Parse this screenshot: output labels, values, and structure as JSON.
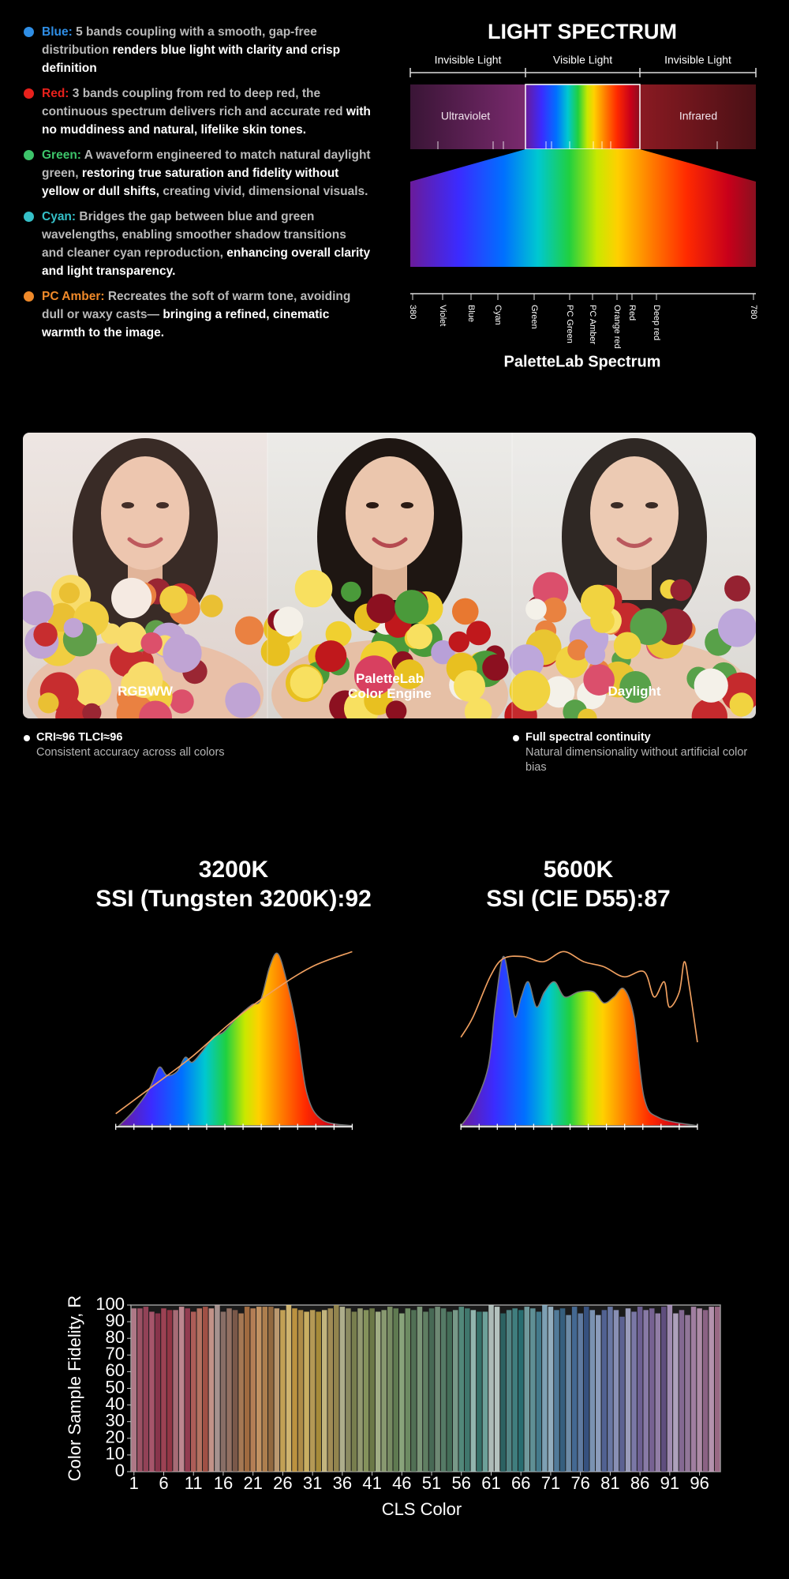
{
  "features": [
    {
      "label": "Blue:",
      "color": "#2f8ee5",
      "parts": [
        {
          "text": "5 bands coupling with a smooth, gap-free distribution",
          "tone": "dim"
        },
        {
          "text": "renders blue light with clarity and crisp definition",
          "tone": "bright"
        }
      ]
    },
    {
      "label": "Red:",
      "color": "#e8211c",
      "parts": [
        {
          "text": "3 bands coupling from red to deep red, the continuous spectrum delivers rich and accurate red",
          "tone": "dim"
        },
        {
          "text": "with no muddiness and natural, lifelike skin tones.",
          "tone": "bright"
        }
      ]
    },
    {
      "label": "Green:",
      "color": "#3dc46a",
      "parts": [
        {
          "text": "A waveform engineered to match natural daylight green,",
          "tone": "dim"
        },
        {
          "text": "restoring true saturation and fidelity without yellow or dull shifts,",
          "tone": "bright"
        },
        {
          "text": "creating vivid, dimensional visuals.",
          "tone": "dim"
        }
      ]
    },
    {
      "label": "Cyan:",
      "color": "#35c0c8",
      "parts": [
        {
          "text": "Bridges the gap between blue and green wavelengths, enabling smoother shadow transitions and cleaner cyan reproduction,",
          "tone": "dim"
        },
        {
          "text": "enhancing overall clarity and light transparency.",
          "tone": "bright"
        }
      ]
    },
    {
      "label": "PC Amber:",
      "color": "#f08a2a",
      "parts": [
        {
          "text": "Recreates the soft of warm tone, avoiding dull or waxy casts—",
          "tone": "dim"
        },
        {
          "text": "bringing a refined, cinematic warmth to the image.",
          "tone": "bright"
        }
      ]
    }
  ],
  "spectrum": {
    "title": "LIGHT SPECTRUM",
    "regions": [
      "Invisible Light",
      "Visible Light",
      "Invisible Light"
    ],
    "ultraviolet": "Ultraviolet",
    "infrared": "Infrared",
    "axis_labels": [
      380,
      "Violet",
      "Blue",
      "Cyan",
      "Green",
      "PC Green",
      "PC Amber",
      "Orange red",
      "Red",
      "Deep red",
      780
    ],
    "caption": "PaletteLab Spectrum"
  },
  "comparison": {
    "panels": [
      "RGBWW",
      "PaletteLab\nColor Engine",
      "Daylight"
    ],
    "notes": [
      {
        "title": "CRI≈96 TLCI≈96",
        "text": "Consistent accuracy across all colors"
      },
      {
        "title": "Full spectral continuity",
        "text": "Natural dimensionality without artificial color bias"
      }
    ]
  },
  "ssi": [
    {
      "cct": "3200K",
      "label": "SSI (Tungsten 3200K):92"
    },
    {
      "cct": "5600K",
      "label": "SSI (CIE D55):87"
    }
  ],
  "chart_data": {
    "type": "bar",
    "y_label": "Color Sample Fidelity, R",
    "x_label": "CLS Color",
    "x": [
      1,
      2,
      3,
      4,
      5,
      6,
      7,
      8,
      9,
      10,
      11,
      12,
      13,
      14,
      15,
      16,
      17,
      18,
      19,
      20,
      21,
      22,
      23,
      24,
      25,
      26,
      27,
      28,
      29,
      30,
      31,
      32,
      33,
      34,
      35,
      36,
      37,
      38,
      39,
      40,
      41,
      42,
      43,
      44,
      45,
      46,
      47,
      48,
      49,
      50,
      51,
      52,
      53,
      54,
      55,
      56,
      57,
      58,
      59,
      60,
      61,
      62,
      63,
      64,
      65,
      66,
      67,
      68,
      69,
      70,
      71,
      72,
      73,
      74,
      75,
      76,
      77,
      78,
      79,
      80,
      81,
      82,
      83,
      84,
      85,
      86,
      87,
      88,
      89,
      90,
      91,
      92,
      93,
      94,
      95,
      96,
      97,
      98,
      99
    ],
    "values": [
      98,
      98,
      99,
      96,
      95,
      98,
      97,
      97,
      99,
      98,
      96,
      98,
      99,
      98,
      100,
      96,
      98,
      97,
      95,
      99,
      98,
      99,
      99,
      99,
      98,
      97,
      100,
      98,
      97,
      96,
      97,
      96,
      97,
      98,
      100,
      99,
      98,
      96,
      98,
      97,
      98,
      96,
      97,
      99,
      98,
      95,
      98,
      97,
      99,
      96,
      98,
      99,
      98,
      96,
      97,
      99,
      98,
      97,
      96,
      96,
      100,
      99,
      95,
      97,
      98,
      97,
      99,
      98,
      96,
      100,
      99,
      97,
      98,
      94,
      99,
      95,
      99,
      97,
      94,
      97,
      99,
      97,
      93,
      98,
      96,
      99,
      97,
      98,
      95,
      99,
      100,
      95,
      97,
      94,
      99,
      98,
      97,
      99,
      99
    ],
    "colors": [
      "#c98a9a",
      "#b35c72",
      "#a84a63",
      "#c0607a",
      "#9c3a55",
      "#b44a5e",
      "#a83c4e",
      "#c07a86",
      "#d99aa4",
      "#a8425a",
      "#c86a64",
      "#d0826e",
      "#b85a4e",
      "#e0a89c",
      "#c0a8a4",
      "#9c7e74",
      "#a88070",
      "#8c6452",
      "#c08a5e",
      "#b87a48",
      "#d09060",
      "#e0a870",
      "#c89058",
      "#a87848",
      "#d8b080",
      "#e0b860",
      "#f0d080",
      "#d8a848",
      "#c8a050",
      "#e8c870",
      "#d0b060",
      "#c0a040",
      "#e0d090",
      "#b8a060",
      "#a89858",
      "#c8c8a0",
      "#a0a070",
      "#8a9058",
      "#a8b080",
      "#98a868",
      "#7a8a50",
      "#b8c898",
      "#9cb080",
      "#88a070",
      "#6c8c5c",
      "#9cbc8c",
      "#7ca070",
      "#5c8060",
      "#8cac88",
      "#6c9070",
      "#507860",
      "#7c9c84",
      "#608c74",
      "#4c7c64",
      "#88b09c",
      "#5c9c8c",
      "#48887c",
      "#a8d0c8",
      "#3c8078",
      "#7cb8b0",
      "#c8d8d4",
      "#d0e0dc",
      "#307070",
      "#5c9898",
      "#489090",
      "#2c7c80",
      "#80b0b4",
      "#6ca4ac",
      "#4c8ca0",
      "#90b8d0",
      "#a8c8dc",
      "#5c8cb0",
      "#3c6c90",
      "#7ca0c0",
      "#4c78a8",
      "#6c8cb8",
      "#3c5c90",
      "#8ca8cc",
      "#a0b4d8",
      "#5c70a8",
      "#7888bc",
      "#9ca4d0",
      "#6870a8",
      "#b0b4d8",
      "#8c88c0",
      "#7c6ca8",
      "#9c8cc0",
      "#8870a8",
      "#a890c0",
      "#6c5890",
      "#b8a0cc",
      "#c8b8d8",
      "#9878a8",
      "#a888b0",
      "#b890b8",
      "#c8a0c0",
      "#a07098",
      "#d0a8c8",
      "#b07898"
    ],
    "xlim": [
      0.5,
      99.5
    ],
    "xticks": [
      1,
      6,
      11,
      16,
      21,
      26,
      31,
      36,
      41,
      46,
      51,
      56,
      61,
      66,
      71,
      76,
      81,
      86,
      91,
      96
    ],
    "ylim": [
      0,
      100
    ],
    "yticks": [
      0,
      10,
      20,
      30,
      40,
      50,
      60,
      70,
      80,
      90,
      100
    ]
  }
}
